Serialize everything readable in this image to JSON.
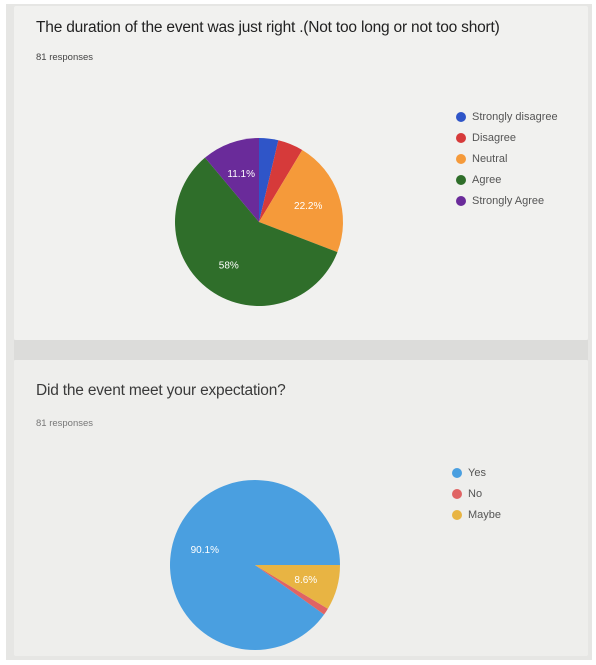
{
  "charts": [
    {
      "question": "The duration of the event was just right .(Not too long or not too short)",
      "responses": "81 responses",
      "chart_data": {
        "type": "pie",
        "categories": [
          "Strongly disagree",
          "Disagree",
          "Neutral",
          "Agree",
          "Strongly Agree"
        ],
        "values": [
          3.7,
          4.9,
          22.2,
          58.0,
          11.1
        ],
        "colors": [
          "#2f55c8",
          "#d63a3a",
          "#f59a3a",
          "#2f6e2a",
          "#6a2b9a"
        ],
        "slice_labels": [
          "",
          "",
          "22.2%",
          "58%",
          "11.1%"
        ],
        "legend_position": "right",
        "start": "top-clockwise"
      }
    },
    {
      "question": "Did the event meet your expectation?",
      "responses": "81 responses",
      "chart_data": {
        "type": "pie",
        "categories": [
          "Yes",
          "No",
          "Maybe"
        ],
        "values": [
          90.1,
          1.3,
          8.6
        ],
        "colors": [
          "#4a9fe0",
          "#e06464",
          "#e8b443"
        ],
        "slice_labels": [
          "90.1%",
          "",
          "8.6%"
        ],
        "legend_position": "right",
        "start": "right-counterclockwise"
      }
    }
  ]
}
